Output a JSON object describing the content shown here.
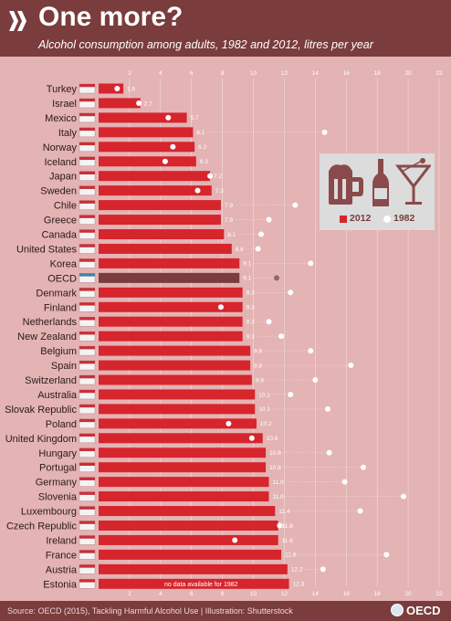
{
  "header": {
    "title": "One more?",
    "subtitle": "Alcohol consumption among adults, 1982 and 2012, litres per year"
  },
  "legend": {
    "label_2012": "2012",
    "label_1982": "1982",
    "icons": [
      "beer-mug-icon",
      "wine-bottle-icon",
      "cocktail-glass-icon"
    ]
  },
  "footer": {
    "source": "Source: OECD (2015), Tackling Harmful Alcohol Use | Illustration: Shutterstock",
    "logo_text": "OECD"
  },
  "colors": {
    "header_bg": "#7a3c3d",
    "plot_bg": "#e4b3b4",
    "bar_2012": "#d6252c",
    "bar_oecd": "#7a3c3d",
    "dot_1982": "#ffffff",
    "dot_oecd": "#8a6b6b"
  },
  "chart_data": {
    "type": "bar",
    "orientation": "horizontal",
    "title": "One more?",
    "subtitle": "Alcohol consumption among adults, 1982 and 2012, litres per year",
    "xlim": [
      0,
      22
    ],
    "xticks": [
      2,
      4,
      6,
      8,
      10,
      12,
      14,
      16,
      18,
      20,
      22
    ],
    "grid": true,
    "legend_position": "right",
    "categories": [
      "Turkey",
      "Israel",
      "Mexico",
      "Italy",
      "Norway",
      "Iceland",
      "Japan",
      "Sweden",
      "Chile",
      "Greece",
      "Canada",
      "United States",
      "Korea",
      "OECD",
      "Denmark",
      "Finland",
      "Netherlands",
      "New Zealand",
      "Belgium",
      "Spain",
      "Switzerland",
      "Australia",
      "Slovak Republic",
      "Poland",
      "United Kingdom",
      "Hungary",
      "Portugal",
      "Germany",
      "Slovenia",
      "Luxembourg",
      "Czech Republic",
      "Ireland",
      "France",
      "Austria",
      "Estonia"
    ],
    "highlight": "OECD",
    "series": [
      {
        "name": "2012",
        "values": [
          1.6,
          2.7,
          5.7,
          6.1,
          6.2,
          6.3,
          7.2,
          7.3,
          7.9,
          7.9,
          8.1,
          8.6,
          9.1,
          9.1,
          9.3,
          9.3,
          9.3,
          9.3,
          9.8,
          9.8,
          9.9,
          10.1,
          10.1,
          10.2,
          10.6,
          10.8,
          10.8,
          11.0,
          11.0,
          11.4,
          11.6,
          11.6,
          11.8,
          12.2,
          12.3
        ],
        "labels": [
          "1.6",
          "2.7",
          "5.7",
          "6.1",
          "6.2",
          "6.3",
          "7.2",
          "7.3",
          "7.9",
          "7.9",
          "8.1",
          "8.6",
          "9.1",
          "9.1",
          "9.3",
          "9.3",
          "9.3",
          "9.3",
          "9.8",
          "9.8",
          "9.9",
          "10.1",
          "10.1",
          "10.2",
          "10.6",
          "10.8",
          "10.8",
          "11.0",
          "11.0",
          "11.4",
          "11.6",
          "11.6",
          "11.8",
          "12.2",
          "12.3"
        ]
      },
      {
        "name": "1982",
        "values": [
          1.2,
          2.6,
          4.5,
          14.6,
          4.8,
          4.3,
          7.2,
          6.4,
          12.7,
          11.0,
          10.5,
          10.3,
          13.7,
          11.5,
          12.4,
          7.9,
          11.0,
          11.8,
          13.7,
          16.3,
          14.0,
          12.4,
          14.8,
          8.4,
          9.9,
          14.9,
          17.1,
          15.9,
          19.7,
          16.9,
          11.7,
          8.8,
          18.6,
          14.5,
          null
        ]
      }
    ],
    "notes": [
      {
        "category": "Estonia",
        "text": "no data available for 1982"
      }
    ]
  }
}
